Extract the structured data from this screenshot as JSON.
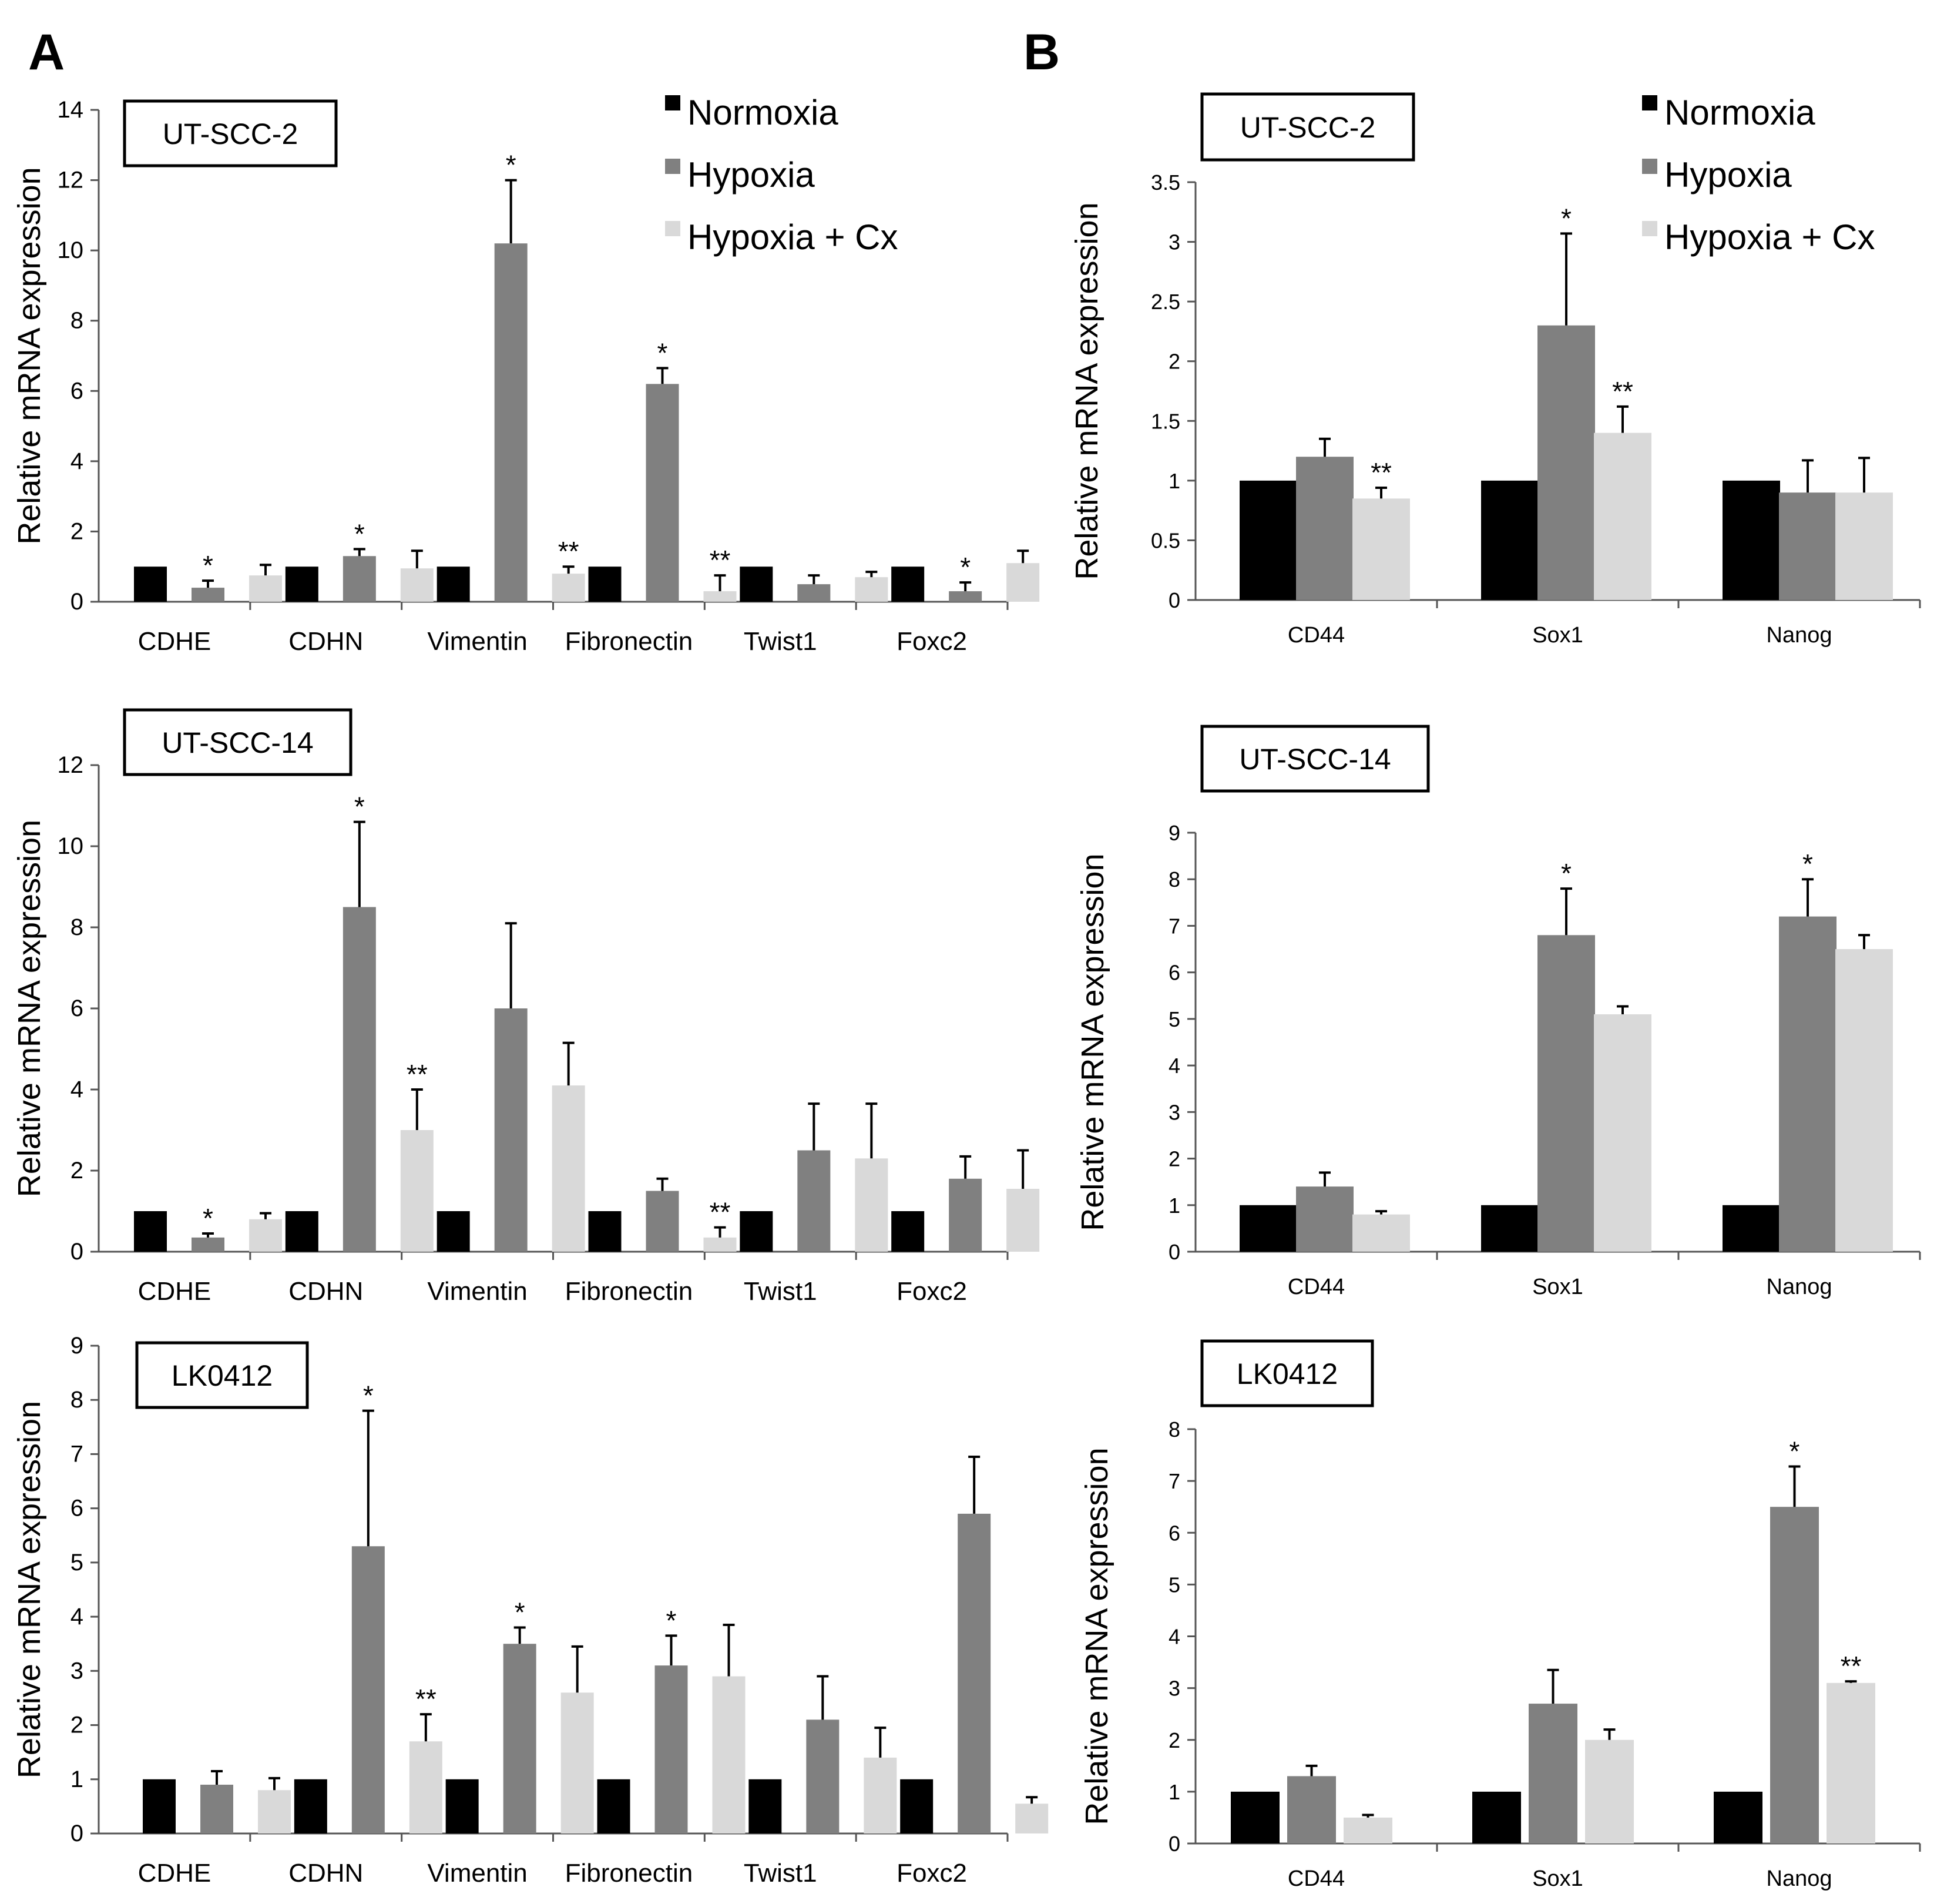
{
  "panels": [
    {
      "id": "A",
      "label": "A"
    },
    {
      "id": "B",
      "label": "B"
    }
  ],
  "legend": {
    "entries": [
      "Normoxia",
      "Hypoxia",
      "Hypoxia + Cx"
    ],
    "colors": [
      "#000000",
      "#808080",
      "#d9d9d9"
    ]
  },
  "chart_data": [
    {
      "type": "bar",
      "panel": "A",
      "title": "UT-SCC-2",
      "ylabel": "Relative mRNA expression",
      "ylim": [
        0,
        14
      ],
      "yticks": [
        0,
        2,
        4,
        6,
        8,
        10,
        12,
        14
      ],
      "categories": [
        "CDHE",
        "CDHN",
        "Vimentin",
        "Fibronectin",
        "Twist1",
        "Foxc2"
      ],
      "series": [
        {
          "name": "Normoxia",
          "values": [
            1,
            1,
            1,
            1,
            1,
            1
          ],
          "errors": [
            0,
            0,
            0,
            0,
            0,
            0
          ],
          "marks": [
            "",
            "",
            "",
            "",
            "",
            ""
          ]
        },
        {
          "name": "Hypoxia",
          "values": [
            0.4,
            1.3,
            10.2,
            6.2,
            0.5,
            0.3
          ],
          "errors": [
            0.2,
            0.2,
            1.8,
            0.45,
            0.25,
            0.25
          ],
          "marks": [
            "*",
            "*",
            "*",
            "*",
            "",
            "*"
          ]
        },
        {
          "name": "Hypoxia + Cx",
          "values": [
            0.75,
            0.95,
            0.8,
            0.3,
            0.7,
            1.1
          ],
          "errors": [
            0.3,
            0.5,
            0.2,
            0.45,
            0.15,
            0.35
          ],
          "marks": [
            "",
            "",
            "**",
            "**",
            "",
            ""
          ]
        }
      ]
    },
    {
      "type": "bar",
      "panel": "A",
      "title": "UT-SCC-14",
      "ylabel": "Relative mRNA expression",
      "ylim": [
        0,
        12
      ],
      "yticks": [
        0,
        2,
        4,
        6,
        8,
        10,
        12
      ],
      "categories": [
        "CDHE",
        "CDHN",
        "Vimentin",
        "Fibronectin",
        "Twist1",
        "Foxc2"
      ],
      "series": [
        {
          "name": "Normoxia",
          "values": [
            1,
            1,
            1,
            1,
            1,
            1
          ],
          "errors": [
            0,
            0,
            0,
            0,
            0,
            0
          ],
          "marks": [
            "",
            "",
            "",
            "",
            "",
            ""
          ]
        },
        {
          "name": "Hypoxia",
          "values": [
            0.35,
            8.5,
            6.0,
            1.5,
            2.5,
            1.8
          ],
          "errors": [
            0.1,
            2.1,
            2.1,
            0.3,
            1.15,
            0.55
          ],
          "marks": [
            "*",
            "*",
            "",
            "",
            "",
            ""
          ]
        },
        {
          "name": "Hypoxia + Cx",
          "values": [
            0.8,
            3.0,
            4.1,
            0.35,
            2.3,
            1.55
          ],
          "errors": [
            0.15,
            1.0,
            1.05,
            0.25,
            1.35,
            0.95
          ],
          "marks": [
            "",
            "**",
            "",
            "**",
            "",
            ""
          ]
        }
      ]
    },
    {
      "type": "bar",
      "panel": "A",
      "title": "LK0412",
      "ylabel": "Relative mRNA expression",
      "ylim": [
        0,
        9
      ],
      "yticks": [
        0,
        1,
        2,
        3,
        4,
        5,
        6,
        7,
        8,
        9
      ],
      "categories": [
        "CDHE",
        "CDHN",
        "Vimentin",
        "Fibronectin",
        "Twist1",
        "Foxc2"
      ],
      "series": [
        {
          "name": "Normoxia",
          "values": [
            1,
            1,
            1,
            1,
            1,
            1
          ],
          "errors": [
            0,
            0,
            0,
            0,
            0,
            0
          ],
          "marks": [
            "",
            "",
            "",
            "",
            "",
            ""
          ]
        },
        {
          "name": "Hypoxia",
          "values": [
            0.9,
            5.3,
            3.5,
            3.1,
            2.1,
            5.9
          ],
          "errors": [
            0.25,
            2.5,
            0.3,
            0.55,
            0.8,
            1.05
          ],
          "marks": [
            "",
            "*",
            "*",
            "*",
            "",
            ""
          ]
        },
        {
          "name": "Hypoxia + Cx",
          "values": [
            0.8,
            1.7,
            2.6,
            2.9,
            1.4,
            0.55
          ],
          "errors": [
            0.22,
            0.5,
            0.85,
            0.95,
            0.55,
            0.12
          ],
          "marks": [
            "",
            "**",
            "",
            "",
            "",
            ""
          ]
        }
      ]
    },
    {
      "type": "bar",
      "panel": "B",
      "title": "UT-SCC-2",
      "ylabel": "Relative mRNA expression",
      "ylim": [
        0,
        3.5
      ],
      "yticks": [
        0,
        0.5,
        1,
        1.5,
        2,
        2.5,
        3,
        3.5
      ],
      "categories": [
        "CD44",
        "Sox1",
        "Nanog"
      ],
      "series": [
        {
          "name": "Normoxia",
          "values": [
            1,
            1,
            1
          ],
          "errors": [
            0,
            0,
            0
          ],
          "marks": [
            "",
            "",
            ""
          ]
        },
        {
          "name": "Hypoxia",
          "values": [
            1.2,
            2.3,
            0.9
          ],
          "errors": [
            0.15,
            0.77,
            0.27
          ],
          "marks": [
            "",
            "*",
            ""
          ]
        },
        {
          "name": "Hypoxia + Cx",
          "values": [
            0.85,
            1.4,
            0.9
          ],
          "errors": [
            0.09,
            0.22,
            0.29
          ],
          "marks": [
            "**",
            "**",
            ""
          ]
        }
      ]
    },
    {
      "type": "bar",
      "panel": "B",
      "title": "UT-SCC-14",
      "ylabel": "Relative mRNA expression",
      "ylim": [
        0,
        9
      ],
      "yticks": [
        0,
        1,
        2,
        3,
        4,
        5,
        6,
        7,
        8,
        9
      ],
      "categories": [
        "CD44",
        "Sox1",
        "Nanog"
      ],
      "series": [
        {
          "name": "Normoxia",
          "values": [
            1,
            1,
            1
          ],
          "errors": [
            0,
            0,
            0
          ],
          "marks": [
            "",
            "",
            ""
          ]
        },
        {
          "name": "Hypoxia",
          "values": [
            1.4,
            6.8,
            7.2
          ],
          "errors": [
            0.3,
            1.0,
            0.8
          ],
          "marks": [
            "",
            "*",
            "*"
          ]
        },
        {
          "name": "Hypoxia + Cx",
          "values": [
            0.8,
            5.1,
            6.5
          ],
          "errors": [
            0.07,
            0.17,
            0.3
          ],
          "marks": [
            "",
            "",
            ""
          ]
        }
      ]
    },
    {
      "type": "bar",
      "panel": "B",
      "title": "LK0412",
      "ylabel": "Relative mRNA expression",
      "ylim": [
        0,
        8
      ],
      "yticks": [
        0,
        1,
        2,
        3,
        4,
        5,
        6,
        7,
        8
      ],
      "categories": [
        "CD44",
        "Sox1",
        "Nanog"
      ],
      "series": [
        {
          "name": "Normoxia",
          "values": [
            1,
            1,
            1
          ],
          "errors": [
            0,
            0,
            0
          ],
          "marks": [
            "",
            "",
            ""
          ]
        },
        {
          "name": "Hypoxia",
          "values": [
            1.3,
            2.7,
            6.5
          ],
          "errors": [
            0.2,
            0.65,
            0.78
          ],
          "marks": [
            "",
            "",
            "*"
          ]
        },
        {
          "name": "Hypoxia + Cx",
          "values": [
            0.5,
            2.0,
            3.1
          ],
          "errors": [
            0.05,
            0.2,
            0.03
          ],
          "marks": [
            "",
            "",
            "**"
          ]
        }
      ]
    }
  ]
}
